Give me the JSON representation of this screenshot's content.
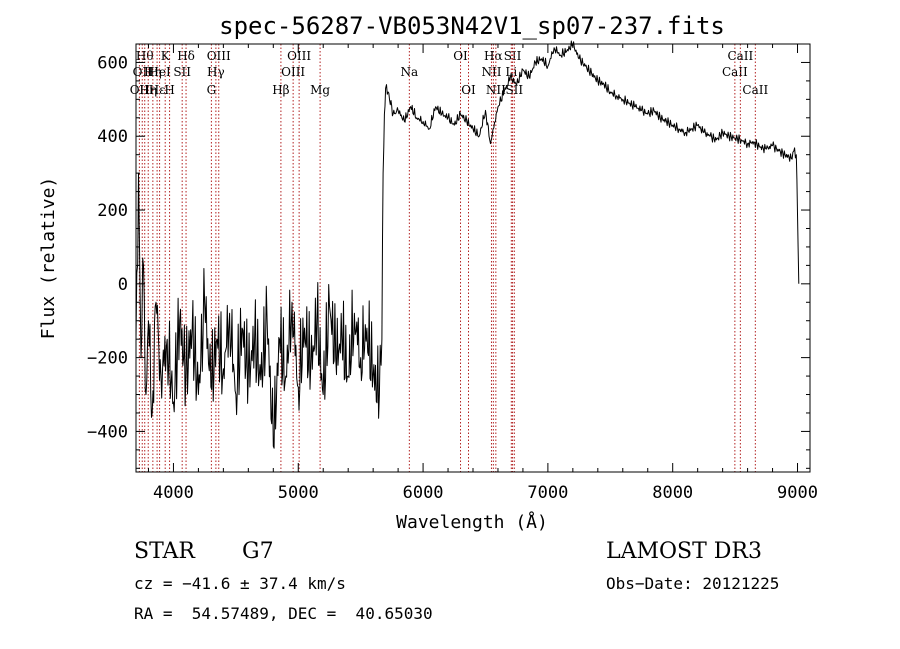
{
  "chart_data": {
    "type": "line",
    "title": "spec-56287-VB053N42V1_sp07-237.fits",
    "xlabel": "Wavelength (Å)",
    "ylabel": "Flux (relative)",
    "xlim": [
      3700,
      9100
    ],
    "ylim": [
      -510,
      650
    ],
    "xticks": [
      4000,
      5000,
      6000,
      7000,
      8000,
      9000
    ],
    "yticks": [
      -400,
      -200,
      0,
      200,
      400,
      600
    ],
    "series": [
      {
        "name": "flux",
        "x": [
          3700,
          3720,
          3740,
          3760,
          3780,
          3800,
          3830,
          3860,
          3900,
          3950,
          4000,
          4050,
          4100,
          4150,
          4200,
          4250,
          4300,
          4350,
          4400,
          4450,
          4500,
          4550,
          4600,
          4650,
          4700,
          4750,
          4800,
          4850,
          4900,
          4950,
          5000,
          5050,
          5100,
          5150,
          5200,
          5250,
          5300,
          5350,
          5400,
          5450,
          5500,
          5550,
          5600,
          5650,
          5670,
          5680,
          5690,
          5700,
          5720,
          5760,
          5800,
          5850,
          5900,
          5950,
          6000,
          6050,
          6100,
          6150,
          6200,
          6250,
          6300,
          6350,
          6400,
          6450,
          6500,
          6540,
          6560,
          6580,
          6600,
          6650,
          6700,
          6750,
          6800,
          6850,
          6900,
          6950,
          7000,
          7050,
          7100,
          7150,
          7200,
          7250,
          7300,
          7350,
          7400,
          7450,
          7500,
          7550,
          7600,
          7650,
          7700,
          7750,
          7800,
          7850,
          7900,
          7950,
          8000,
          8050,
          8100,
          8150,
          8200,
          8250,
          8300,
          8350,
          8400,
          8450,
          8500,
          8550,
          8600,
          8650,
          8700,
          8750,
          8800,
          8850,
          8900,
          8950,
          8970,
          8990,
          9000,
          9010
        ],
        "y": [
          -150,
          300,
          -200,
          50,
          -300,
          -100,
          -350,
          -50,
          -250,
          -150,
          -320,
          -100,
          -250,
          -120,
          -300,
          -50,
          -280,
          -150,
          -230,
          -80,
          -300,
          -120,
          -250,
          -150,
          -260,
          -100,
          -440,
          -150,
          -250,
          -50,
          -280,
          -120,
          -230,
          -100,
          -300,
          -60,
          -200,
          -150,
          -250,
          -80,
          -200,
          -120,
          -250,
          -300,
          -150,
          300,
          460,
          530,
          520,
          460,
          470,
          440,
          480,
          450,
          440,
          420,
          480,
          460,
          450,
          430,
          460,
          440,
          420,
          400,
          470,
          380,
          420,
          440,
          480,
          520,
          560,
          540,
          580,
          560,
          600,
          610,
          590,
          640,
          620,
          630,
          650,
          610,
          590,
          570,
          550,
          540,
          520,
          510,
          500,
          490,
          480,
          470,
          460,
          470,
          450,
          440,
          430,
          420,
          410,
          420,
          430,
          410,
          400,
          390,
          410,
          400,
          395,
          390,
          380,
          385,
          370,
          365,
          375,
          360,
          350,
          340,
          360,
          350,
          190,
          0
        ]
      }
    ],
    "lines": [
      {
        "wave": 3727,
        "name": "OII",
        "row": 3
      },
      {
        "wave": 3750,
        "name": "OII",
        "row": 2
      },
      {
        "wave": 3770,
        "name": "Hθ",
        "row": 1
      },
      {
        "wave": 3798,
        "name": "Hη",
        "row": 3
      },
      {
        "wave": 3835,
        "name": "Hη",
        "row": 2
      },
      {
        "wave": 3869,
        "name": "Hε",
        "row": 3
      },
      {
        "wave": 3889,
        "name": "HeI",
        "row": 2
      },
      {
        "wave": 3934,
        "name": "K",
        "row": 1
      },
      {
        "wave": 3969,
        "name": "H",
        "row": 3
      },
      {
        "wave": 4070,
        "name": "SII",
        "row": 2
      },
      {
        "wave": 4101,
        "name": "Hδ",
        "row": 1
      },
      {
        "wave": 4304,
        "name": "G",
        "row": 3
      },
      {
        "wave": 4340,
        "name": "Hγ",
        "row": 2
      },
      {
        "wave": 4363,
        "name": "OIII",
        "row": 1
      },
      {
        "wave": 4861,
        "name": "Hβ",
        "row": 3
      },
      {
        "wave": 4959,
        "name": "OIII",
        "row": 2
      },
      {
        "wave": 5007,
        "name": "OIII",
        "row": 1
      },
      {
        "wave": 5175,
        "name": "Mg",
        "row": 3
      },
      {
        "wave": 5890,
        "name": "Na",
        "row": 2
      },
      {
        "wave": 6300,
        "name": "OI",
        "row": 1
      },
      {
        "wave": 6364,
        "name": "OI",
        "row": 3
      },
      {
        "wave": 6548,
        "name": "NII",
        "row": 2
      },
      {
        "wave": 6563,
        "name": "Hα",
        "row": 1
      },
      {
        "wave": 6583,
        "name": "NII",
        "row": 3
      },
      {
        "wave": 6707,
        "name": "Li",
        "row": 2
      },
      {
        "wave": 6717,
        "name": "SII",
        "row": 1
      },
      {
        "wave": 6731,
        "name": "SII",
        "row": 3
      },
      {
        "wave": 8498,
        "name": "CaII",
        "row": 2
      },
      {
        "wave": 8542,
        "name": "CaII",
        "row": 1
      },
      {
        "wave": 8662,
        "name": "CaII",
        "row": 3
      }
    ]
  },
  "info": {
    "object_class": "STAR",
    "subclass": "G7",
    "survey": "LAMOST DR3",
    "redshift": "cz = −41.6 ± 37.4 km/s",
    "obs_date": "Obs−Date: 20121225",
    "coords": "RA =  54.57489, DEC =  40.65030"
  },
  "colors": {
    "line_marker": "#b22222",
    "axis": "#000000"
  }
}
